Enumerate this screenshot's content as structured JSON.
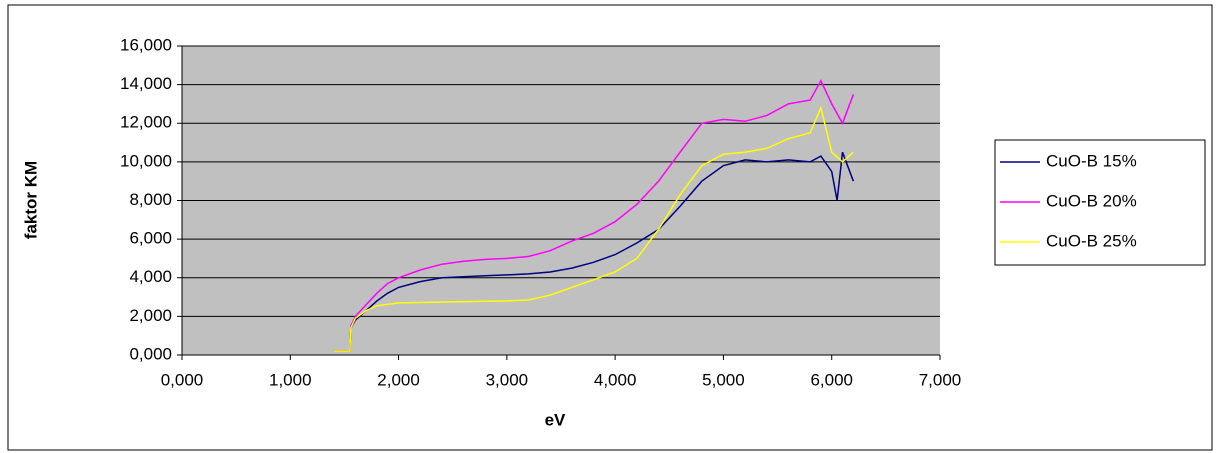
{
  "chart_data": {
    "type": "line",
    "x_label": "eV",
    "y_label": "faktor KM",
    "xlim": [
      0,
      7
    ],
    "xticks": [
      {
        "value": 0,
        "label": "0,000"
      },
      {
        "value": 1,
        "label": "1,000"
      },
      {
        "value": 2,
        "label": "2,000"
      },
      {
        "value": 3,
        "label": "3,000"
      },
      {
        "value": 4,
        "label": "4,000"
      },
      {
        "value": 5,
        "label": "5,000"
      },
      {
        "value": 6,
        "label": "6,000"
      },
      {
        "value": 7,
        "label": "7,000"
      }
    ],
    "ylim": [
      0,
      16
    ],
    "yticks": [
      {
        "value": 0,
        "label": "0,000"
      },
      {
        "value": 2,
        "label": "2,000"
      },
      {
        "value": 4,
        "label": "4,000"
      },
      {
        "value": 6,
        "label": "6,000"
      },
      {
        "value": 8,
        "label": "8,000"
      },
      {
        "value": 10,
        "label": "10,000"
      },
      {
        "value": 12,
        "label": "12,000"
      },
      {
        "value": 14,
        "label": "14,000"
      },
      {
        "value": 16,
        "label": "16,000"
      }
    ],
    "grid": true,
    "legend": "right",
    "series": [
      {
        "name": "CuO-B 15%",
        "color": "#000080",
        "x": [
          1.4,
          1.55,
          1.56,
          1.6,
          1.7,
          1.8,
          1.9,
          2.0,
          2.2,
          2.4,
          2.6,
          2.8,
          3.0,
          3.2,
          3.4,
          3.6,
          3.8,
          4.0,
          4.2,
          4.4,
          4.6,
          4.8,
          5.0,
          5.2,
          5.4,
          5.6,
          5.8,
          5.9,
          6.0,
          6.05,
          6.1,
          6.2
        ],
        "values": [
          0.2,
          0.2,
          1.4,
          1.8,
          2.3,
          2.8,
          3.2,
          3.5,
          3.8,
          4.0,
          4.05,
          4.1,
          4.15,
          4.2,
          4.3,
          4.5,
          4.8,
          5.2,
          5.8,
          6.5,
          7.7,
          9.0,
          9.8,
          10.1,
          10.0,
          10.1,
          10.0,
          10.3,
          9.5,
          8.0,
          10.5,
          9.0
        ]
      },
      {
        "name": "CuO-B 20%",
        "color": "#ff00ff",
        "x": [
          1.4,
          1.55,
          1.56,
          1.6,
          1.7,
          1.8,
          1.9,
          2.0,
          2.2,
          2.4,
          2.6,
          2.8,
          3.0,
          3.2,
          3.4,
          3.6,
          3.8,
          4.0,
          4.2,
          4.4,
          4.6,
          4.8,
          5.0,
          5.2,
          5.4,
          5.6,
          5.8,
          5.9,
          6.0,
          6.1,
          6.2
        ],
        "values": [
          0.2,
          0.2,
          1.5,
          2.0,
          2.6,
          3.2,
          3.7,
          4.0,
          4.4,
          4.7,
          4.85,
          4.95,
          5.0,
          5.1,
          5.4,
          5.9,
          6.3,
          6.9,
          7.8,
          9.0,
          10.5,
          12.0,
          12.2,
          12.1,
          12.4,
          13.0,
          13.2,
          14.2,
          13.0,
          12.0,
          13.5
        ]
      },
      {
        "name": "CuO-B 25%",
        "color": "#ffff00",
        "x": [
          1.4,
          1.55,
          1.56,
          1.6,
          1.7,
          1.8,
          2.0,
          2.5,
          3.0,
          3.2,
          3.4,
          3.6,
          3.8,
          4.0,
          4.2,
          4.4,
          4.6,
          4.8,
          5.0,
          5.2,
          5.4,
          5.6,
          5.8,
          5.9,
          6.0,
          6.1,
          6.2
        ],
        "values": [
          0.2,
          0.2,
          1.4,
          1.9,
          2.3,
          2.55,
          2.7,
          2.75,
          2.8,
          2.85,
          3.1,
          3.5,
          3.9,
          4.3,
          5.0,
          6.5,
          8.3,
          9.8,
          10.4,
          10.5,
          10.7,
          11.2,
          11.5,
          12.8,
          10.5,
          10.0,
          10.5
        ]
      }
    ]
  }
}
